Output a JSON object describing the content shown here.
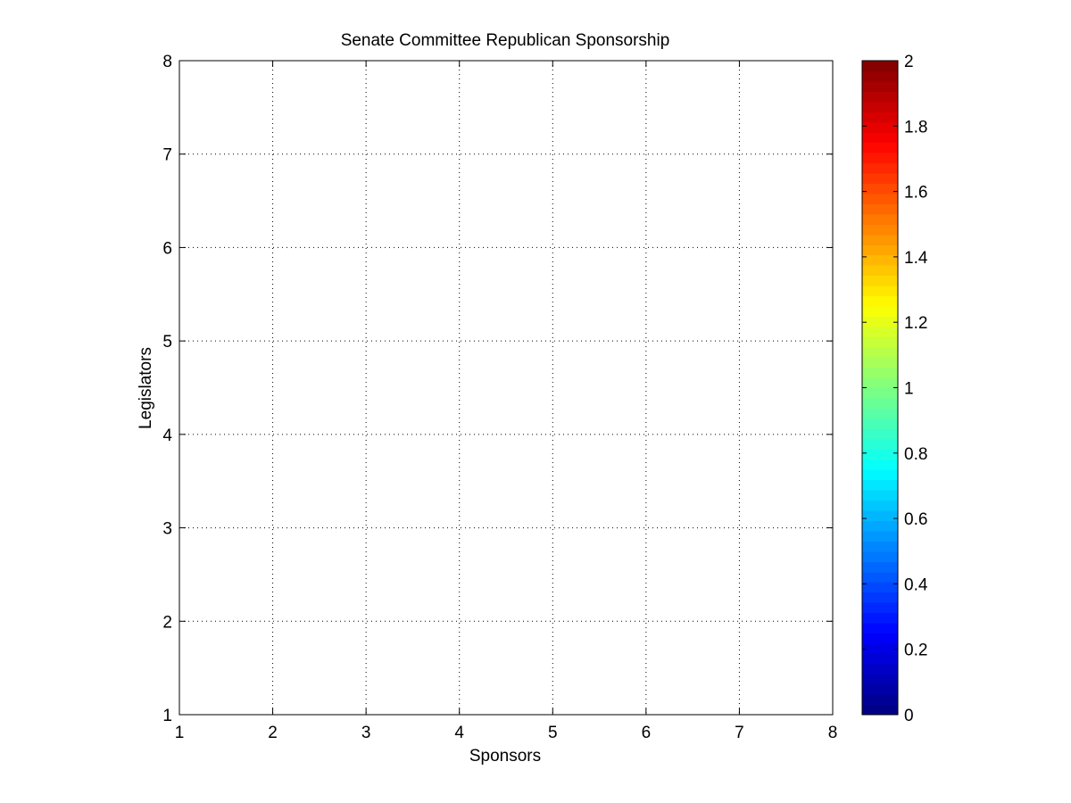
{
  "chart_data": {
    "type": "heatmap",
    "title": "Senate Committee Republican Sponsorship",
    "xlabel": "Sponsors",
    "ylabel": "Legislators",
    "xlim": [
      1,
      8
    ],
    "ylim": [
      1,
      8
    ],
    "xticks": [
      "1",
      "2",
      "3",
      "4",
      "5",
      "6",
      "7",
      "8"
    ],
    "yticks": [
      "1",
      "2",
      "3",
      "4",
      "5",
      "6",
      "7",
      "8"
    ],
    "grid": true,
    "grid_style": "dotted",
    "values": [],
    "colorbar": {
      "colormap": "jet",
      "range": [
        0,
        2
      ],
      "ticks": [
        "0",
        "0.2",
        "0.4",
        "0.6",
        "0.8",
        "1",
        "1.2",
        "1.4",
        "1.6",
        "1.8",
        "2"
      ],
      "position": "right"
    }
  }
}
